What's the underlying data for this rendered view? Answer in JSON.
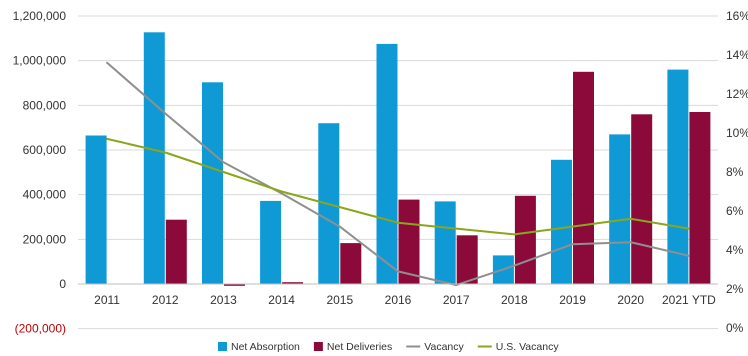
{
  "chart_data": {
    "type": "bar",
    "categories": [
      "2011",
      "2012",
      "2013",
      "2014",
      "2015",
      "2016",
      "2017",
      "2018",
      "2019",
      "2020",
      "2021 YTD"
    ],
    "series": [
      {
        "name": "Net Absorption",
        "kind": "bar",
        "axis": "left",
        "color": "#0f9ad6",
        "values": [
          665000,
          1127000,
          903000,
          372000,
          720000,
          1075000,
          370000,
          128000,
          556000,
          670000,
          960000
        ]
      },
      {
        "name": "Net Deliveries",
        "kind": "bar",
        "axis": "left",
        "color": "#8b0a3a",
        "values": [
          0,
          288000,
          -8000,
          8000,
          183000,
          378000,
          218000,
          395000,
          950000,
          760000,
          770000
        ]
      },
      {
        "name": "Vacancy",
        "kind": "line",
        "axis": "right",
        "color": "#8f8f8f",
        "values": [
          13.6,
          11.0,
          8.5,
          6.9,
          5.2,
          2.9,
          2.2,
          3.2,
          4.3,
          4.4,
          3.7
        ]
      },
      {
        "name": "U.S. Vacancy",
        "kind": "line",
        "axis": "right",
        "color": "#8aa61b",
        "values": [
          9.7,
          9.0,
          8.0,
          7.0,
          6.2,
          5.4,
          5.1,
          4.8,
          5.2,
          5.6,
          5.1
        ]
      }
    ],
    "y_left": {
      "ylim": [
        -200000,
        1200000
      ],
      "ticks": [
        -200000,
        0,
        200000,
        400000,
        600000,
        800000,
        1000000,
        1200000
      ],
      "tick_labels": [
        "(200,000)",
        "0",
        "200,000",
        "400,000",
        "600,000",
        "800,000",
        "1,000,000",
        "1,200,000"
      ]
    },
    "y_right": {
      "ylim": [
        0,
        16
      ],
      "ticks": [
        0,
        2,
        4,
        6,
        8,
        10,
        12,
        14,
        16
      ],
      "tick_labels": [
        "0%",
        "2%",
        "4%",
        "6%",
        "8%",
        "10%",
        "12%",
        "14%",
        "16%"
      ]
    },
    "grid": "horizontal",
    "legend": "bottom",
    "title": "",
    "xlabel": "",
    "ylabel": ""
  }
}
